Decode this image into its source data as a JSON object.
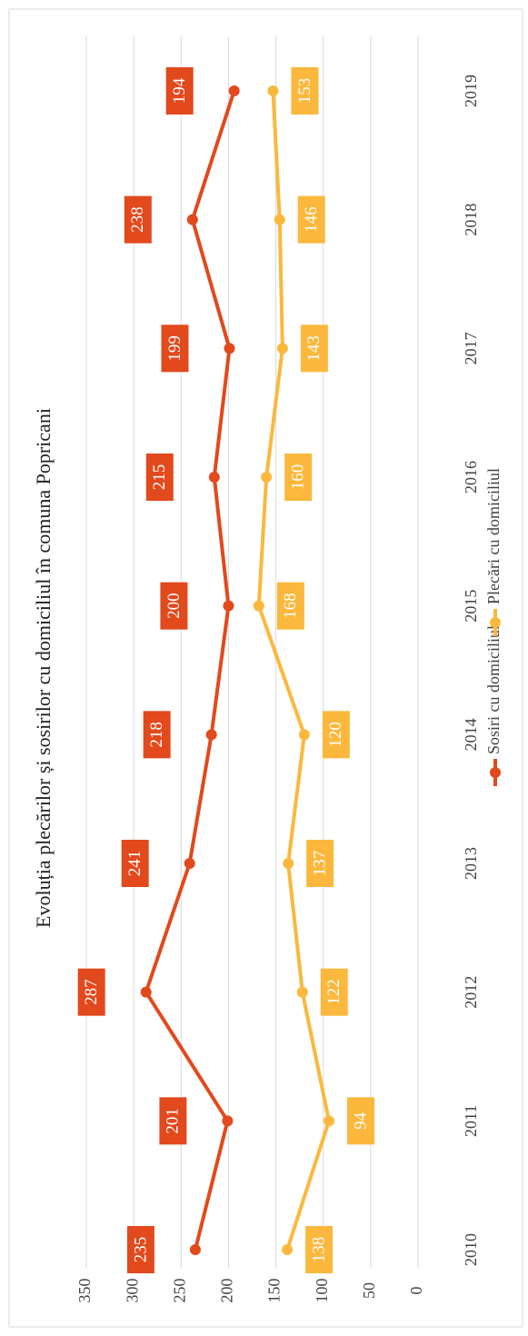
{
  "chart_data": {
    "type": "line",
    "title": "Evoluția plecărilor și sosirilor cu domiciliul în comuna Popricani",
    "categories": [
      "2010",
      "2011",
      "2012",
      "2013",
      "2014",
      "2015",
      "2016",
      "2017",
      "2018",
      "2019"
    ],
    "series": [
      {
        "name": "Sosiri cu domiciliul",
        "color": "#e2491c",
        "values": [
          235,
          201,
          287,
          241,
          218,
          200,
          215,
          199,
          238,
          194
        ]
      },
      {
        "name": "Plecări cu domiciliul",
        "color": "#fbb83c",
        "values": [
          138,
          94,
          122,
          137,
          120,
          168,
          160,
          143,
          146,
          153
        ]
      }
    ],
    "ylim": [
      0,
      350
    ],
    "yticks": [
      0,
      50,
      100,
      150,
      200,
      250,
      300,
      350
    ],
    "grid": true,
    "legend": "bottom"
  }
}
